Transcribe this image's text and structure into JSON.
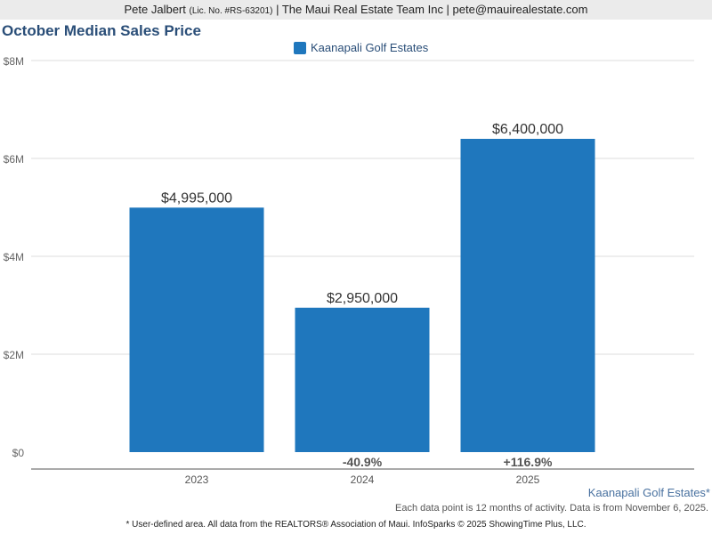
{
  "header": {
    "name": "Pete Jalbert",
    "license": "(Lic. No. #RS-63201)",
    "rest": "| The Maui Real Estate Team Inc | pete@mauirealestate.com"
  },
  "chart_data": {
    "type": "bar",
    "title": "October Median Sales Price",
    "categories": [
      "2023",
      "2024",
      "2025"
    ],
    "series": [
      {
        "name": "Kaanapali Golf Estates",
        "values": [
          4995000,
          2950000,
          6400000
        ],
        "color": "#1f77bd"
      }
    ],
    "data_labels": [
      "$4,995,000",
      "$2,950,000",
      "$6,400,000"
    ],
    "change_labels": [
      "",
      "-40.9%",
      "+116.9%"
    ],
    "yticks": [
      0,
      2000000,
      4000000,
      6000000,
      8000000
    ],
    "ytick_labels": [
      "$0",
      "$2M",
      "$4M",
      "$6M",
      "$8M"
    ],
    "ylim": [
      0,
      8000000
    ],
    "grid": true,
    "legend": "top-center"
  },
  "footer": {
    "area": "Kaanapali Golf Estates*",
    "note": "Each data point is 12 months of activity. Data is from November 6, 2025.",
    "source": "* User-defined area. All data from the REALTORS® Association of Maui. InfoSparks © 2025 ShowingTime Plus, LLC."
  }
}
